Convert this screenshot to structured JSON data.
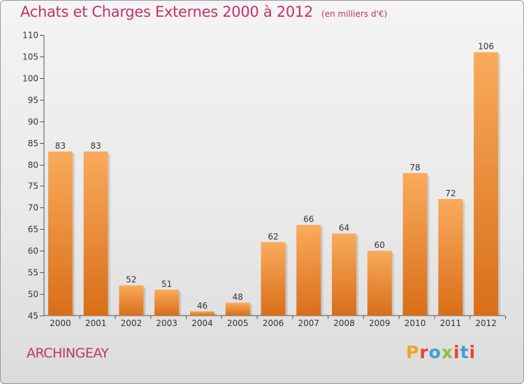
{
  "header": {
    "title": "Achats et Charges Externes 2000 à 2012",
    "subtitle": "(en milliers d'€)"
  },
  "footer": {
    "town": "ARCHINGEAY",
    "logo_text": "Proxiti"
  },
  "colors": {
    "accent": "#c0336a",
    "bar_light": "#f9ab5c",
    "bar_dark": "#d96e19",
    "logo": [
      "#f2a427",
      "#e8452c",
      "#3c9fd9",
      "#8fbf3a",
      "#e8452c",
      "#3c9fd9",
      "#e8452c"
    ]
  },
  "chart_data": {
    "type": "bar",
    "categories": [
      "2000",
      "2001",
      "2002",
      "2003",
      "2004",
      "2005",
      "2006",
      "2007",
      "2008",
      "2009",
      "2010",
      "2011",
      "2012"
    ],
    "values": [
      83,
      83,
      52,
      51,
      46,
      48,
      62,
      66,
      64,
      60,
      78,
      72,
      106
    ],
    "ylim": [
      45,
      110
    ],
    "yticks": [
      45,
      50,
      55,
      60,
      65,
      70,
      75,
      80,
      85,
      90,
      95,
      100,
      105,
      110
    ],
    "grid": false,
    "data_labels": true
  }
}
